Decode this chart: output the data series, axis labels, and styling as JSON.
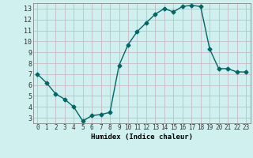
{
  "x": [
    0,
    1,
    2,
    3,
    4,
    5,
    6,
    7,
    8,
    9,
    10,
    11,
    12,
    13,
    14,
    15,
    16,
    17,
    18,
    19,
    20,
    21,
    22,
    23
  ],
  "y": [
    7.0,
    6.2,
    5.2,
    4.7,
    4.0,
    2.7,
    3.2,
    3.3,
    3.5,
    7.8,
    9.7,
    10.9,
    11.7,
    12.5,
    13.0,
    12.7,
    13.2,
    13.3,
    13.2,
    9.3,
    7.5,
    7.5,
    7.2,
    7.2
  ],
  "xlabel": "Humidex (Indice chaleur)",
  "ylim_min": 2.5,
  "ylim_max": 13.5,
  "xlim_min": -0.5,
  "xlim_max": 23.5,
  "yticks": [
    3,
    4,
    5,
    6,
    7,
    8,
    9,
    10,
    11,
    12,
    13
  ],
  "xticks": [
    0,
    1,
    2,
    3,
    4,
    5,
    6,
    7,
    8,
    9,
    10,
    11,
    12,
    13,
    14,
    15,
    16,
    17,
    18,
    19,
    20,
    21,
    22,
    23
  ],
  "line_color": "#006666",
  "marker": "D",
  "marker_size": 2.5,
  "bg_color": "#cff0ee",
  "grid_color": "#b0c8c8",
  "tick_label_color": "#333333",
  "spine_color": "#888888",
  "xlabel_color": "#000000"
}
